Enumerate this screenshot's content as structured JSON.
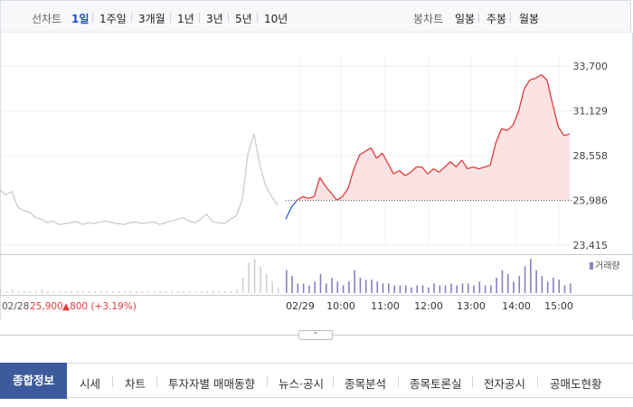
{
  "toolbar": {
    "line_label": "선차트",
    "line_periods": [
      {
        "label": "1일",
        "active": true
      },
      {
        "label": "1주일",
        "active": false
      },
      {
        "label": "3개월",
        "active": false
      },
      {
        "label": "1년",
        "active": false
      },
      {
        "label": "3년",
        "active": false
      },
      {
        "label": "5년",
        "active": false
      },
      {
        "label": "10년",
        "active": false
      }
    ],
    "candle_label": "봉차트",
    "candle_periods": [
      "일봉",
      "주봉",
      "월봉"
    ]
  },
  "prev_summary": {
    "date": "02/28",
    "close": "25,900",
    "change": "▲800 (+3.19%)"
  },
  "volume_label": "거래량",
  "chart_data": {
    "type": "line",
    "y_ticks": [
      "33,700",
      "31,129",
      "28,558",
      "25,986",
      "23,415"
    ],
    "ylim": [
      23415,
      33700
    ],
    "baseline": 25986,
    "x_ticks": [
      "02/29",
      "10:00",
      "11:00",
      "12:00",
      "13:00",
      "14:00",
      "15:00"
    ],
    "colors": {
      "prev_day": "#c8c8c8",
      "up": "#e03b3b",
      "down": "#2e63c8",
      "area": "#fbe3e3",
      "volume_today": "#8f7dc1",
      "volume_prev": "#cfcfcf"
    },
    "prev_day_price": [
      26600,
      26300,
      26500,
      25600,
      25400,
      25300,
      25000,
      24900,
      24700,
      24800,
      24600,
      24650,
      24700,
      24750,
      24600,
      24700,
      24650,
      24750,
      24800,
      24700,
      24650,
      24600,
      24700,
      24750,
      24650,
      24700,
      24750,
      24600,
      24700,
      24800,
      24900,
      25000,
      24800,
      24700,
      24900,
      25200,
      24750,
      24700,
      24650,
      24900,
      25100,
      26000,
      28700,
      29800,
      28000,
      26800,
      26200,
      25700
    ],
    "today_price": [
      24900,
      25600,
      26000,
      26200,
      26100,
      26200,
      27300,
      26800,
      26400,
      26000,
      26200,
      26700,
      27800,
      28600,
      28800,
      29000,
      28400,
      28700,
      28100,
      27500,
      27700,
      27400,
      27600,
      27900,
      27900,
      27500,
      27800,
      27600,
      27900,
      28200,
      27900,
      28300,
      27800,
      27900,
      27800,
      27900,
      28000,
      29300,
      30100,
      30000,
      30300,
      31100,
      32400,
      32900,
      33000,
      33200,
      32900,
      31500,
      30200,
      29700,
      29800
    ],
    "prev_day_volume": [
      2,
      1,
      2,
      1,
      1,
      1,
      1,
      2,
      1,
      1,
      1,
      1,
      1,
      1,
      1,
      1,
      1,
      1,
      1,
      1,
      1,
      1,
      1,
      1,
      1,
      1,
      1,
      1,
      1,
      1,
      1,
      1,
      1,
      1,
      1,
      1,
      1,
      1,
      1,
      1,
      2,
      8,
      16,
      18,
      14,
      10,
      6,
      3
    ],
    "today_volume": [
      12,
      9,
      5,
      5,
      4,
      6,
      10,
      5,
      8,
      6,
      4,
      6,
      12,
      8,
      7,
      7,
      6,
      5,
      5,
      4,
      4,
      4,
      3,
      4,
      4,
      3,
      5,
      4,
      4,
      5,
      4,
      5,
      5,
      4,
      6,
      4,
      4,
      8,
      12,
      10,
      6,
      9,
      14,
      18,
      12,
      9,
      6,
      8,
      7,
      4,
      5
    ]
  },
  "tabs": {
    "main": "종합정보",
    "items": [
      "시세",
      "차트",
      "투자자별 매매동향",
      "뉴스·공시",
      "종목분석",
      "종목토론실",
      "전자공시",
      "공매도현황"
    ]
  }
}
